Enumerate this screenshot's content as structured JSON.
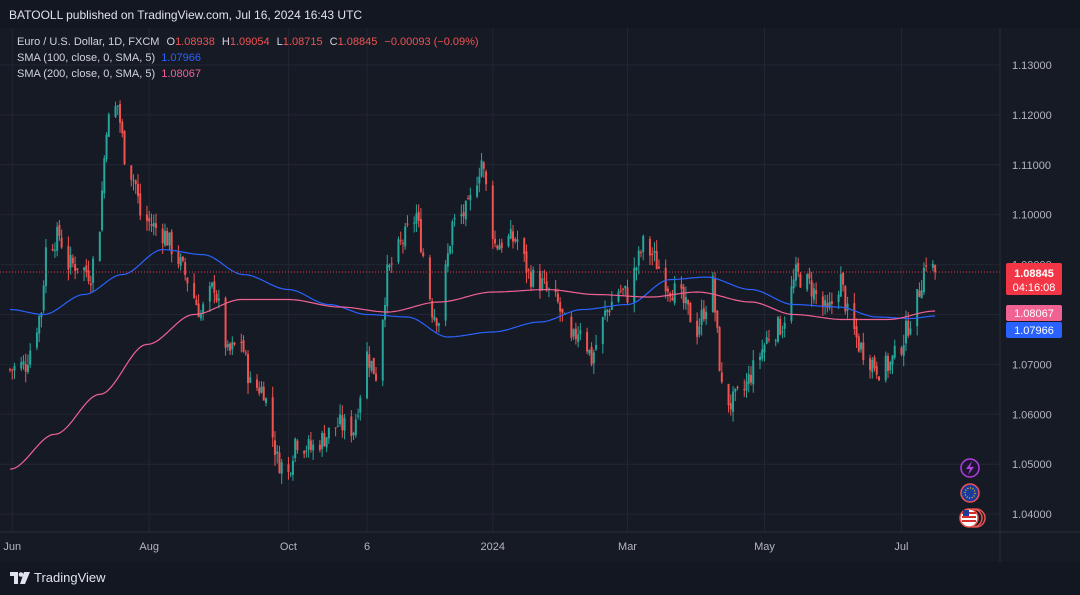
{
  "header": {
    "published": "BATOOLL published on TradingView.com, Jul 16, 2024 16:43 UTC"
  },
  "legend": {
    "symbol": "Euro / U.S. Dollar, 1D, FXCM",
    "o_label": "O",
    "o_value": "1.08938",
    "h_label": "H",
    "h_value": "1.09054",
    "l_label": "L",
    "l_value": "1.08715",
    "c_label": "C",
    "c_value": "1.08845",
    "change": "−0.00093 (−0.09%)",
    "sma100_label": "SMA (100, close, 0, SMA, 5)",
    "sma100_value": "1.07966",
    "sma200_label": "SMA (200, close, 0, SMA, 5)",
    "sma200_value": "1.08067"
  },
  "price_tags": {
    "last": "1.08845",
    "countdown": "04:16:08",
    "sma200": "1.08067",
    "sma100": "1.07966"
  },
  "footer": {
    "brand": "TradingView"
  },
  "colors": {
    "up": "#26a69a",
    "down": "#ef5350",
    "sma100": "#2962ff",
    "sma200": "#f06292",
    "last_price": "#f23645",
    "grid": "#232632"
  },
  "icons": [
    "lightning-icon",
    "eu-flag-icon",
    "us-flag-icon"
  ],
  "chart_data": {
    "type": "candlestick",
    "title": "Euro / U.S. Dollar, 1D, FXCM",
    "ylim": [
      1.035,
      1.137
    ],
    "y_ticks": [
      "1.13000",
      "1.12000",
      "1.11000",
      "1.10000",
      "1.09000",
      "1.08000",
      "1.07000",
      "1.06000",
      "1.05000",
      "1.04000"
    ],
    "x_ticks": [
      {
        "label": "Jun",
        "date": "2023-06-01"
      },
      {
        "label": "Aug",
        "date": "2023-08-01"
      },
      {
        "label": "Oct",
        "date": "2023-10-02"
      },
      {
        "label": "6",
        "date": "2023-11-06"
      },
      {
        "label": "2024",
        "date": "2024-01-01"
      },
      {
        "label": "Mar",
        "date": "2024-03-01"
      },
      {
        "label": "May",
        "date": "2024-05-01"
      },
      {
        "label": "Jul",
        "date": "2024-07-01"
      }
    ],
    "close_path": [
      [
        "2023-05-31",
        1.069
      ],
      [
        "2023-06-07",
        1.07
      ],
      [
        "2023-06-14",
        1.081
      ],
      [
        "2023-06-16",
        1.093
      ],
      [
        "2023-06-22",
        1.096
      ],
      [
        "2023-06-26",
        1.09
      ],
      [
        "2023-06-30",
        1.09
      ],
      [
        "2023-07-06",
        1.088
      ],
      [
        "2023-07-10",
        1.098
      ],
      [
        "2023-07-13",
        1.118
      ],
      [
        "2023-07-18",
        1.122
      ],
      [
        "2023-07-21",
        1.112
      ],
      [
        "2023-07-26",
        1.106
      ],
      [
        "2023-07-28",
        1.1
      ],
      [
        "2023-08-02",
        1.098
      ],
      [
        "2023-08-08",
        1.096
      ],
      [
        "2023-08-14",
        1.091
      ],
      [
        "2023-08-18",
        1.087
      ],
      [
        "2023-08-24",
        1.08
      ],
      [
        "2023-08-30",
        1.086
      ],
      [
        "2023-09-05",
        1.072
      ],
      [
        "2023-09-11",
        1.075
      ],
      [
        "2023-09-15",
        1.066
      ],
      [
        "2023-09-21",
        1.065
      ],
      [
        "2023-09-27",
        1.051
      ],
      [
        "2023-10-02",
        1.048
      ],
      [
        "2023-10-05",
        1.055
      ],
      [
        "2023-10-12",
        1.053
      ],
      [
        "2023-10-17",
        1.055
      ],
      [
        "2023-10-24",
        1.058
      ],
      [
        "2023-10-31",
        1.057
      ],
      [
        "2023-11-06",
        1.072
      ],
      [
        "2023-11-10",
        1.068
      ],
      [
        "2023-11-15",
        1.088
      ],
      [
        "2023-11-20",
        1.093
      ],
      [
        "2023-11-28",
        1.1
      ],
      [
        "2023-12-05",
        1.081
      ],
      [
        "2023-12-08",
        1.079
      ],
      [
        "2023-12-14",
        1.098
      ],
      [
        "2023-12-21",
        1.101
      ],
      [
        "2023-12-27",
        1.111
      ],
      [
        "2024-01-02",
        1.094
      ],
      [
        "2024-01-08",
        1.095
      ],
      [
        "2024-01-12",
        1.095
      ],
      [
        "2024-01-17",
        1.088
      ],
      [
        "2024-01-23",
        1.086
      ],
      [
        "2024-01-30",
        1.082
      ],
      [
        "2024-02-05",
        1.074
      ],
      [
        "2024-02-09",
        1.078
      ],
      [
        "2024-02-14",
        1.071
      ],
      [
        "2024-02-20",
        1.08
      ],
      [
        "2024-02-26",
        1.085
      ],
      [
        "2024-03-01",
        1.084
      ],
      [
        "2024-03-08",
        1.094
      ],
      [
        "2024-03-12",
        1.092
      ],
      [
        "2024-03-19",
        1.086
      ],
      [
        "2024-03-25",
        1.083
      ],
      [
        "2024-04-01",
        1.077
      ],
      [
        "2024-04-08",
        1.086
      ],
      [
        "2024-04-12",
        1.065
      ],
      [
        "2024-04-16",
        1.062
      ],
      [
        "2024-04-22",
        1.065
      ],
      [
        "2024-04-29",
        1.072
      ],
      [
        "2024-05-03",
        1.076
      ],
      [
        "2024-05-09",
        1.078
      ],
      [
        "2024-05-15",
        1.088
      ],
      [
        "2024-05-21",
        1.086
      ],
      [
        "2024-05-29",
        1.08
      ],
      [
        "2024-06-04",
        1.087
      ],
      [
        "2024-06-07",
        1.08
      ],
      [
        "2024-06-12",
        1.074
      ],
      [
        "2024-06-17",
        1.071
      ],
      [
        "2024-06-21",
        1.069
      ],
      [
        "2024-06-26",
        1.07
      ],
      [
        "2024-07-01",
        1.074
      ],
      [
        "2024-07-08",
        1.083
      ],
      [
        "2024-07-12",
        1.091
      ],
      [
        "2024-07-16",
        1.0885
      ]
    ],
    "series": [
      {
        "name": "SMA (100, close, 0, SMA, 5)",
        "color": "#2962ff",
        "points": [
          [
            "2023-05-31",
            1.081
          ],
          [
            "2023-06-15",
            1.08
          ],
          [
            "2023-07-03",
            1.084
          ],
          [
            "2023-07-20",
            1.088
          ],
          [
            "2023-08-07",
            1.093
          ],
          [
            "2023-08-25",
            1.092
          ],
          [
            "2023-09-12",
            1.088
          ],
          [
            "2023-10-02",
            1.085
          ],
          [
            "2023-10-20",
            1.082
          ],
          [
            "2023-11-06",
            1.08
          ],
          [
            "2023-11-24",
            1.0795
          ],
          [
            "2023-12-12",
            1.0755
          ],
          [
            "2024-01-01",
            1.0765
          ],
          [
            "2024-01-22",
            1.0785
          ],
          [
            "2024-02-10",
            1.081
          ],
          [
            "2024-03-01",
            1.082
          ],
          [
            "2024-03-20",
            1.087
          ],
          [
            "2024-04-05",
            1.0875
          ],
          [
            "2024-04-25",
            1.085
          ],
          [
            "2024-05-14",
            1.082
          ],
          [
            "2024-06-03",
            1.0815
          ],
          [
            "2024-06-20",
            1.0795
          ],
          [
            "2024-07-05",
            1.0792
          ],
          [
            "2024-07-16",
            1.0797
          ]
        ]
      },
      {
        "name": "SMA (200, close, 0, SMA, 5)",
        "color": "#f06292",
        "points": [
          [
            "2023-05-31",
            1.049
          ],
          [
            "2023-06-20",
            1.056
          ],
          [
            "2023-07-10",
            1.064
          ],
          [
            "2023-07-31",
            1.074
          ],
          [
            "2023-08-21",
            1.08
          ],
          [
            "2023-09-11",
            1.083
          ],
          [
            "2023-10-02",
            1.083
          ],
          [
            "2023-10-25",
            1.0815
          ],
          [
            "2023-11-15",
            1.0805
          ],
          [
            "2023-12-08",
            1.0825
          ],
          [
            "2024-01-01",
            1.0845
          ],
          [
            "2024-01-25",
            1.085
          ],
          [
            "2024-02-16",
            1.084
          ],
          [
            "2024-03-11",
            1.0835
          ],
          [
            "2024-04-01",
            1.0845
          ],
          [
            "2024-04-25",
            1.0825
          ],
          [
            "2024-05-14",
            1.08
          ],
          [
            "2024-06-05",
            1.079
          ],
          [
            "2024-06-25",
            1.079
          ],
          [
            "2024-07-16",
            1.0807
          ]
        ]
      }
    ]
  }
}
